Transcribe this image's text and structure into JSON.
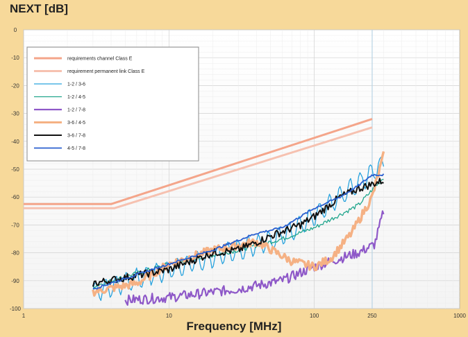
{
  "chart_data": {
    "type": "line",
    "title": "NEXT [dB]",
    "xlabel": "Frequency [MHz]",
    "ylabel": "",
    "x_scale": "log",
    "xlim": [
      1,
      1000
    ],
    "ylim": [
      -100,
      0
    ],
    "x_ticks": [
      {
        "value": 1,
        "label": "1"
      },
      {
        "value": 10,
        "label": "10"
      },
      {
        "value": 100,
        "label": "100"
      },
      {
        "value": 250,
        "label": "250"
      },
      {
        "value": 1000,
        "label": "1000"
      }
    ],
    "y_ticks": [
      {
        "value": 0,
        "label": "0"
      },
      {
        "value": -10,
        "label": "-10"
      },
      {
        "value": -20,
        "label": "-20"
      },
      {
        "value": -30,
        "label": "-30"
      },
      {
        "value": -40,
        "label": "-40"
      },
      {
        "value": -50,
        "label": "-50"
      },
      {
        "value": -60,
        "label": "-60"
      },
      {
        "value": -70,
        "label": "-70"
      },
      {
        "value": -80,
        "label": "-80"
      },
      {
        "value": -90,
        "label": "-90"
      },
      {
        "value": -100,
        "label": "-100"
      }
    ],
    "grid": true,
    "legend_position": "top-left",
    "series": [
      {
        "name": "requirements channel Class E",
        "color": "#f4a58a",
        "width": 3,
        "noise": 0,
        "amp": 0,
        "x": [
          1,
          4,
          250
        ],
        "y": [
          -62.5,
          -62.5,
          -32
        ]
      },
      {
        "name": "requirement permanent link Class E",
        "color": "#f6c1b0",
        "width": 3,
        "noise": 0,
        "amp": 0,
        "x": [
          1,
          4.2,
          250
        ],
        "y": [
          -64,
          -64,
          -35
        ]
      },
      {
        "name": "1-2 / 3-6",
        "color": "#29a3de",
        "width": 1.3,
        "noise": 0.6,
        "amp": 3.5,
        "period": 0.07,
        "x": [
          3,
          10,
          30,
          60,
          100,
          200,
          300
        ],
        "y": [
          -94,
          -86,
          -79,
          -74,
          -67,
          -55,
          -48
        ]
      },
      {
        "name": "1-2 / 4-5",
        "color": "#22a68d",
        "width": 1.3,
        "noise": 0.8,
        "amp": 0,
        "x": [
          3,
          10,
          30,
          60,
          100,
          200,
          300
        ],
        "y": [
          -92,
          -84,
          -79,
          -75,
          -71,
          -63,
          -53
        ]
      },
      {
        "name": "1-2 / 7-8",
        "color": "#8e58c8",
        "width": 2.2,
        "noise": 1.8,
        "amp": 0,
        "x": [
          5,
          10,
          30,
          60,
          100,
          150,
          200,
          260,
          300
        ],
        "y": [
          -97,
          -96,
          -93,
          -90,
          -85,
          -82,
          -80,
          -77,
          -65
        ]
      },
      {
        "name": "3-6 / 4-5",
        "color": "#f5b184",
        "width": 3.5,
        "noise": 1.5,
        "amp": 0,
        "x": [
          3,
          6,
          10,
          20,
          40,
          70,
          100,
          130,
          180,
          250,
          300
        ],
        "y": [
          -94,
          -91,
          -84,
          -79,
          -76,
          -83,
          -85,
          -82,
          -73,
          -60,
          -45
        ]
      },
      {
        "name": "3-6 / 7-8",
        "color": "#111111",
        "width": 2,
        "noise": 1.4,
        "amp": 0,
        "x": [
          3,
          10,
          20,
          30,
          50,
          80,
          100,
          150,
          200,
          300
        ],
        "y": [
          -91,
          -86,
          -80,
          -79,
          -74,
          -70,
          -67,
          -60,
          -57,
          -54
        ]
      },
      {
        "name": "4-5 / 7-8",
        "color": "#2a5fcf",
        "width": 1.8,
        "noise": 0.4,
        "amp": 0,
        "x": [
          3,
          10,
          20,
          40,
          60,
          100,
          150,
          200,
          250,
          300
        ],
        "y": [
          -93,
          -84,
          -79,
          -73,
          -71,
          -64,
          -60,
          -56,
          -52,
          -52
        ]
      }
    ]
  }
}
